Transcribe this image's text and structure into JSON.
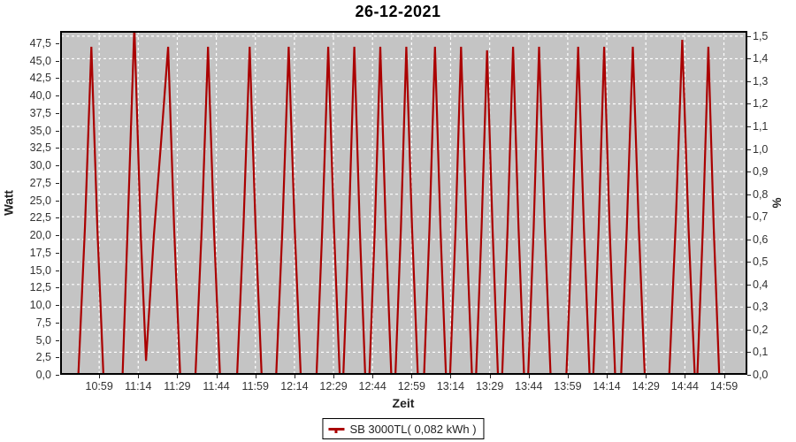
{
  "window": {
    "title": "26-12-2021"
  },
  "legend": {
    "label": "SB 3000TL( 0,082 kWh )",
    "swatch_color": "#aa0000"
  },
  "chart_data": {
    "type": "line",
    "title": "26-12-2021",
    "xlabel": "Zeit",
    "ylabel_left": "Watt",
    "ylabel_right": "%",
    "plot_bg_color": "#c4c4c4",
    "grid_color": "#ffffff",
    "grid_dashed": true,
    "x_axis_start": "10:44",
    "x_axis_span_minutes": 264,
    "x_first_tick_minute": 15,
    "x_tick_interval_minutes": 15,
    "x_tick_labels": [
      "10:59",
      "11:14",
      "11:29",
      "11:44",
      "11:59",
      "12:14",
      "12:29",
      "12:44",
      "12:59",
      "13:14",
      "13:29",
      "13:44",
      "13:59",
      "14:14",
      "14:29",
      "14:44",
      "14:59"
    ],
    "y_left_tick_labels": [
      "0,0",
      "2,5",
      "5,0",
      "7,5",
      "10,0",
      "12,5",
      "15,0",
      "17,5",
      "20,0",
      "22,5",
      "25,0",
      "27,5",
      "30,0",
      "32,5",
      "35,0",
      "37,5",
      "40,0",
      "42,5",
      "45,0",
      "47,5"
    ],
    "y_left_max": 49.27,
    "y_right_tick_labels": [
      "0,0",
      "0,1",
      "0,2",
      "0,3",
      "0,4",
      "0,5",
      "0,6",
      "0,7",
      "0,8",
      "0,9",
      "1,0",
      "1,1",
      "1,2",
      "1,3",
      "1,4",
      "1,5"
    ],
    "y_right_max": 1.523,
    "legend_position": "bottom",
    "series": [
      {
        "name": "SB 3000TL( 0,082 kWh )",
        "color": "#aa0000",
        "y_axis": "left",
        "peak_times": [
          "10:56",
          "11:13",
          "11:26",
          "11:41",
          "11:57",
          "12:12",
          "12:27",
          "12:37",
          "12:47",
          "12:57",
          "13:08",
          "13:18",
          "13:28",
          "13:38",
          "13:48",
          "14:03",
          "14:13",
          "14:24",
          "14:43",
          "14:53"
        ],
        "peak_watts": [
          47,
          50,
          47,
          47,
          47,
          47,
          47,
          47,
          47,
          47,
          47,
          47,
          46.5,
          47,
          47,
          47,
          47,
          47,
          48,
          47
        ],
        "points_min_watt": [
          [
            0,
            0
          ],
          [
            7,
            0
          ],
          [
            9.5,
            21
          ],
          [
            12,
            47
          ],
          [
            14.3,
            21
          ],
          [
            16.6,
            0
          ],
          [
            24,
            0
          ],
          [
            26.2,
            24
          ],
          [
            28.5,
            50
          ],
          [
            31,
            20
          ],
          [
            33,
            2
          ],
          [
            36,
            20
          ],
          [
            38.7,
            33
          ],
          [
            41.5,
            47
          ],
          [
            43.8,
            21
          ],
          [
            46.1,
            0
          ],
          [
            52,
            0
          ],
          [
            54.4,
            21
          ],
          [
            56.8,
            47
          ],
          [
            59.1,
            21
          ],
          [
            61.4,
            0
          ],
          [
            68,
            0
          ],
          [
            70.4,
            21
          ],
          [
            72.8,
            47
          ],
          [
            75.1,
            21
          ],
          [
            77.4,
            0
          ],
          [
            83,
            0
          ],
          [
            85.4,
            21
          ],
          [
            87.8,
            47
          ],
          [
            90.1,
            21
          ],
          [
            92.4,
            0
          ],
          [
            98.5,
            0
          ],
          [
            100.7,
            21
          ],
          [
            103,
            47
          ],
          [
            105.2,
            21
          ],
          [
            107.4,
            0
          ],
          [
            108.8,
            0
          ],
          [
            110.9,
            21
          ],
          [
            113,
            47
          ],
          [
            115.1,
            21
          ],
          [
            117.2,
            0
          ],
          [
            118.8,
            0
          ],
          [
            120.9,
            21
          ],
          [
            123,
            47
          ],
          [
            125.1,
            21
          ],
          [
            127.2,
            0
          ],
          [
            128.8,
            0
          ],
          [
            130.9,
            21
          ],
          [
            133,
            47
          ],
          [
            135.2,
            21
          ],
          [
            137.4,
            0
          ],
          [
            139.8,
            0
          ],
          [
            141.9,
            21
          ],
          [
            144,
            47
          ],
          [
            146.1,
            21
          ],
          [
            148.2,
            0
          ],
          [
            149.8,
            0
          ],
          [
            151.9,
            21
          ],
          [
            154,
            47
          ],
          [
            156.1,
            21
          ],
          [
            158.2,
            0
          ],
          [
            159.8,
            0
          ],
          [
            161.9,
            21
          ],
          [
            164,
            46.5
          ],
          [
            166.1,
            21
          ],
          [
            168.2,
            0
          ],
          [
            169.8,
            0
          ],
          [
            171.9,
            21
          ],
          [
            174,
            47
          ],
          [
            176.1,
            21
          ],
          [
            178.2,
            0
          ],
          [
            179.8,
            0
          ],
          [
            181.9,
            21
          ],
          [
            184,
            47
          ],
          [
            186.2,
            21
          ],
          [
            188.4,
            0
          ],
          [
            194.5,
            0
          ],
          [
            196.7,
            21
          ],
          [
            199,
            47
          ],
          [
            201.2,
            21
          ],
          [
            203.4,
            0
          ],
          [
            204.8,
            0
          ],
          [
            206.9,
            21
          ],
          [
            209,
            47
          ],
          [
            211.1,
            21
          ],
          [
            213.2,
            0
          ],
          [
            215.5,
            0
          ],
          [
            217.7,
            21
          ],
          [
            220,
            47
          ],
          [
            222.3,
            21
          ],
          [
            224.6,
            0
          ],
          [
            234,
            0
          ],
          [
            236.5,
            22
          ],
          [
            239,
            48
          ],
          [
            241.4,
            21
          ],
          [
            243.8,
            0
          ],
          [
            244.8,
            0
          ],
          [
            246.9,
            21
          ],
          [
            249,
            47
          ],
          [
            251.1,
            21
          ],
          [
            253.2,
            0
          ],
          [
            264,
            0
          ]
        ]
      }
    ]
  }
}
